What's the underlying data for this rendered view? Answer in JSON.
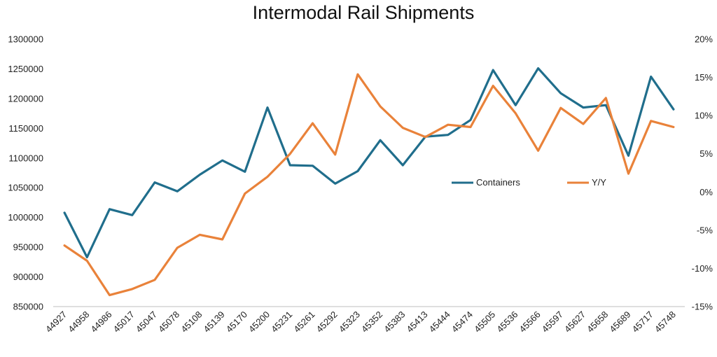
{
  "chart_data": {
    "type": "line",
    "title": "Intermodal Rail Shipments",
    "xlabel": "",
    "ylabel": "",
    "y2label": "",
    "categories": [
      "44927",
      "44958",
      "44986",
      "45017",
      "45047",
      "45078",
      "45108",
      "45139",
      "45170",
      "45200",
      "45231",
      "45261",
      "45292",
      "45323",
      "45352",
      "45383",
      "45413",
      "45444",
      "45474",
      "45505",
      "45536",
      "45566",
      "45597",
      "45627",
      "45658",
      "45689",
      "45717",
      "45748"
    ],
    "ylim": [
      850000,
      1300000
    ],
    "yticks": [
      "1300000",
      "1250000",
      "1200000",
      "1150000",
      "1100000",
      "1050000",
      "1000000",
      "950000",
      "900000",
      "850000"
    ],
    "y2lim": [
      -15,
      20
    ],
    "y2ticks": [
      "20%",
      "15%",
      "10%",
      "5%",
      "0%",
      "-5%",
      "-10%",
      "-15%"
    ],
    "grid": false,
    "legend_position": "center-right",
    "series": [
      {
        "name": "Containers",
        "axis": "left",
        "color": "#206e8c",
        "values": [
          1008000,
          933000,
          1014000,
          1004000,
          1059000,
          1044000,
          1072000,
          1096000,
          1077000,
          1185000,
          1088000,
          1087000,
          1057000,
          1078000,
          1130000,
          1088000,
          1136000,
          1139000,
          1164000,
          1248000,
          1189000,
          1251000,
          1209000,
          1185000,
          1189000,
          1104000,
          1237000,
          1182000
        ]
      },
      {
        "name": "Y/Y",
        "axis": "right",
        "color": "#e9823a",
        "values": [
          -7.0,
          -9.0,
          -13.5,
          -12.7,
          -11.5,
          -7.3,
          -5.6,
          -6.2,
          -0.2,
          2.0,
          5.0,
          9.0,
          4.9,
          15.4,
          11.2,
          8.4,
          7.2,
          8.8,
          8.5,
          13.9,
          10.3,
          5.4,
          11.0,
          8.9,
          12.3,
          2.4,
          9.3,
          8.5
        ]
      }
    ]
  }
}
